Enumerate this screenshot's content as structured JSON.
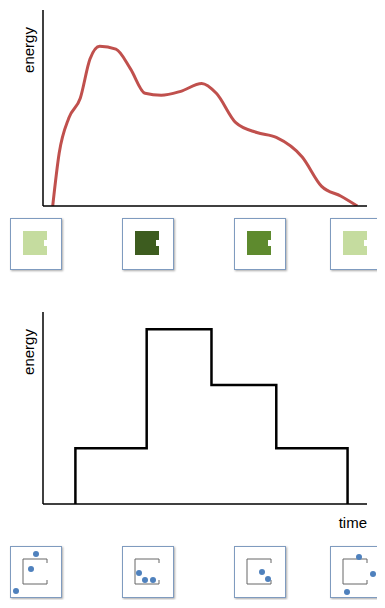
{
  "chart_data": [
    {
      "type": "line",
      "y_label": "energy",
      "x": [
        3,
        5,
        8,
        11.5,
        14.5,
        17.5,
        22.5,
        27,
        31.5,
        36.5,
        42.5,
        49,
        53.5,
        59.5,
        66,
        72,
        80,
        86,
        92,
        97
      ],
      "values": [
        0,
        27,
        45,
        55,
        75,
        81.5,
        80,
        70,
        57.5,
        56.5,
        58.5,
        62.5,
        57.5,
        42.5,
        37.5,
        35,
        25,
        10,
        5,
        0
      ],
      "color": "#c0504d",
      "xlim": [
        0,
        100
      ],
      "ylim": [
        0,
        100
      ],
      "xticks": [],
      "yticks": [],
      "tick_labels": false,
      "line_style": "smooth"
    },
    {
      "type": "line",
      "y_label": "energy",
      "x_label": "time",
      "x": [
        10,
        10,
        32,
        32,
        52,
        52,
        72,
        72,
        94,
        94
      ],
      "values": [
        0,
        29,
        29,
        91,
        91,
        62,
        62,
        29,
        29,
        0
      ],
      "color": "#000000",
      "xlim": [
        0,
        100
      ],
      "ylim": [
        0,
        100
      ],
      "xticks": [],
      "yticks": [],
      "tick_labels": false,
      "line_style": "solid"
    }
  ]
}
